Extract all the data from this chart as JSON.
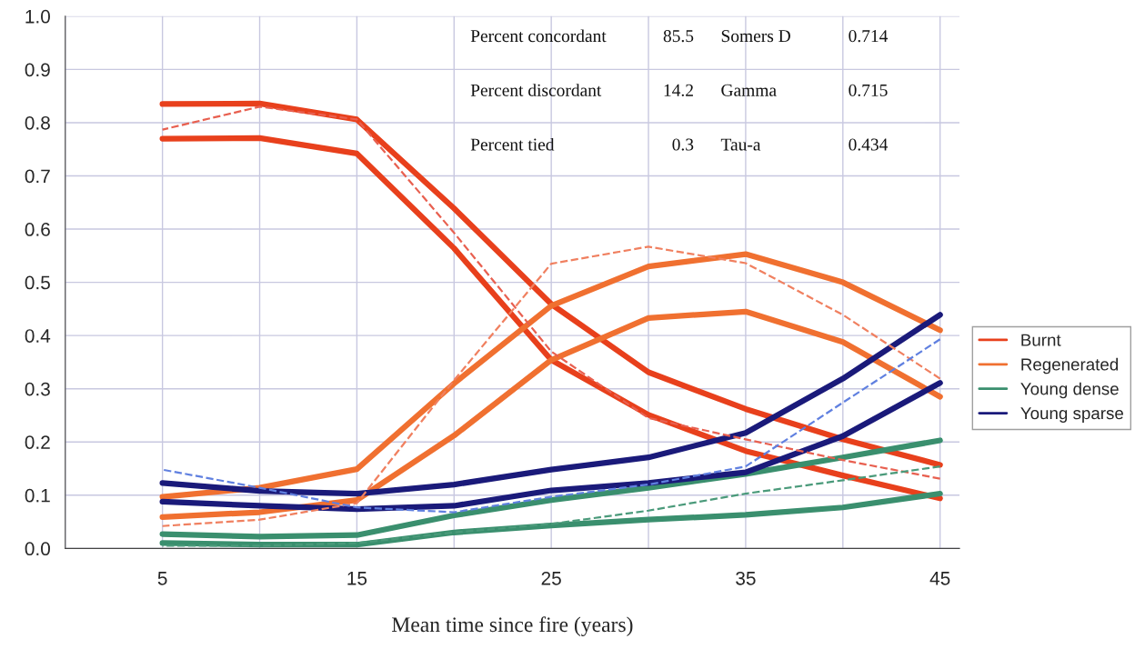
{
  "chart_data": {
    "type": "line",
    "xlabel": "Mean time since fire (years)",
    "x": [
      5,
      10,
      15,
      20,
      25,
      30,
      35,
      40,
      45
    ],
    "series": [
      {
        "name": "Burnt",
        "color": "#e8401c",
        "values": [
          0.835,
          0.836,
          0.806,
          0.639,
          0.459,
          0.331,
          0.262,
          0.205,
          0.157
        ]
      },
      {
        "color": "#e8401c",
        "values": [
          0.77,
          0.771,
          0.742,
          0.564,
          0.354,
          0.251,
          0.183,
          0.137,
          0.094
        ]
      },
      {
        "color": "#e86050",
        "line_style": "dashed",
        "values": [
          0.787,
          0.83,
          0.806,
          0.593,
          0.37,
          0.245,
          0.205,
          0.166,
          0.131
        ]
      },
      {
        "name": "Regenerated",
        "color": "#f07030",
        "values": [
          0.097,
          0.114,
          0.149,
          0.31,
          0.456,
          0.53,
          0.553,
          0.5,
          0.41
        ]
      },
      {
        "color": "#f07030",
        "values": [
          0.059,
          0.068,
          0.091,
          0.212,
          0.354,
          0.433,
          0.445,
          0.388,
          0.285
        ]
      },
      {
        "color": "#f08060",
        "line_style": "dashed",
        "values": [
          0.042,
          0.054,
          0.085,
          0.316,
          0.535,
          0.567,
          0.536,
          0.439,
          0.319
        ]
      },
      {
        "name": "Young dense",
        "color": "#3a8f6e",
        "values": [
          0.027,
          0.022,
          0.025,
          0.062,
          0.091,
          0.114,
          0.14,
          0.171,
          0.203
        ]
      },
      {
        "color": "#3a8f6e",
        "values": [
          0.01,
          0.007,
          0.007,
          0.03,
          0.043,
          0.054,
          0.063,
          0.077,
          0.103
        ]
      },
      {
        "color": "#4a9a7a",
        "line_style": "dashed",
        "values": [
          0.005,
          0.005,
          0.01,
          0.03,
          0.046,
          0.071,
          0.103,
          0.128,
          0.154
        ]
      },
      {
        "name": "Young sparse",
        "color": "#1a1a7a",
        "values": [
          0.123,
          0.108,
          0.103,
          0.12,
          0.148,
          0.171,
          0.217,
          0.319,
          0.439
        ]
      },
      {
        "color": "#1a1a7a",
        "values": [
          0.088,
          0.08,
          0.074,
          0.08,
          0.109,
          0.123,
          0.143,
          0.211,
          0.311
        ]
      },
      {
        "color": "#6080e0",
        "line_style": "dashed",
        "values": [
          0.148,
          0.114,
          0.077,
          0.068,
          0.097,
          0.12,
          0.154,
          0.274,
          0.393
        ]
      }
    ],
    "xlim": [
      0,
      46
    ],
    "xticks": [
      {
        "value": 0,
        "label": null
      },
      5,
      {
        "value": 10,
        "label": null
      },
      15,
      {
        "value": 20,
        "label": null
      },
      25,
      {
        "value": 30,
        "label": null
      },
      35,
      {
        "value": 40,
        "label": null
      },
      45
    ],
    "ylim": [
      0,
      1
    ],
    "yticks": [
      {
        "value": 0,
        "label": "0.0"
      },
      0.1,
      0.2,
      0.3,
      0.4,
      0.5,
      0.6,
      0.7,
      0.8,
      0.9,
      {
        "value": 1,
        "label": "1.0"
      }
    ],
    "grid": true,
    "legend": "right",
    "line_style": "solid",
    "annotations": [
      "Percent concordant",
      "85.5",
      "Somers D",
      "0.714",
      "Percent discordant",
      "14.2",
      "Gamma",
      "0.715",
      "Percent tied",
      "0.3",
      "Tau-a",
      "0.434"
    ]
  }
}
